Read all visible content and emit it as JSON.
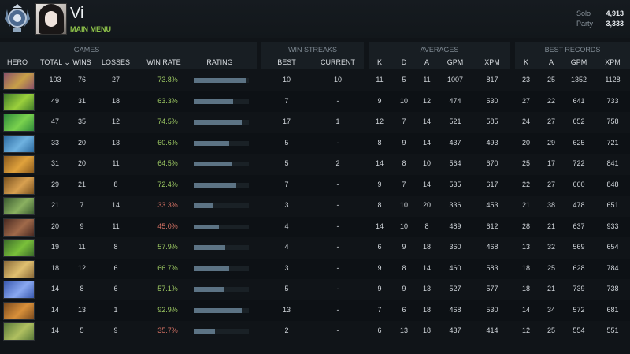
{
  "player": {
    "name": "Vi",
    "menu_label": "MAIN MENU",
    "solo_label": "Solo",
    "solo_value": "4,913",
    "party_label": "Party",
    "party_value": "3,333"
  },
  "groups": {
    "games": "GAMES",
    "win_streaks": "WIN STREAKS",
    "averages": "AVERAGES",
    "best_records": "BEST RECORDS"
  },
  "columns": {
    "hero": "HERO",
    "total": "TOTAL ⌄",
    "wins": "WINS",
    "losses": "LOSSES",
    "win_rate": "WIN RATE",
    "rating": "RATING",
    "best": "BEST",
    "current": "CURRENT",
    "avg_k": "K",
    "avg_d": "D",
    "avg_a": "A",
    "avg_gpm": "GPM",
    "avg_xpm": "XPM",
    "best_k": "K",
    "best_a": "A",
    "best_gpm": "GPM",
    "best_xpm": "XPM"
  },
  "rows": [
    {
      "total": "103",
      "wins": "76",
      "losses": "27",
      "win_rate": "73.8%",
      "rating": 0.96,
      "best": "10",
      "current": "10",
      "k": "11",
      "d": "5",
      "a": "11",
      "gpm": "1007",
      "xpm": "817",
      "bk": "23",
      "ba": "25",
      "bgpm": "1352",
      "bxpm": "1128",
      "c1": "#8a4f6a",
      "c2": "#c8a048"
    },
    {
      "total": "49",
      "wins": "31",
      "losses": "18",
      "win_rate": "63.3%",
      "rating": 0.71,
      "best": "7",
      "current": "-",
      "k": "9",
      "d": "10",
      "a": "12",
      "gpm": "474",
      "xpm": "530",
      "bk": "27",
      "ba": "22",
      "bgpm": "641",
      "bxpm": "733",
      "c1": "#3f7a2a",
      "c2": "#9bd03c"
    },
    {
      "total": "47",
      "wins": "35",
      "losses": "12",
      "win_rate": "74.5%",
      "rating": 0.87,
      "best": "17",
      "current": "1",
      "k": "12",
      "d": "7",
      "a": "14",
      "gpm": "521",
      "xpm": "585",
      "bk": "24",
      "ba": "27",
      "bgpm": "652",
      "bxpm": "758",
      "c1": "#2f8a3a",
      "c2": "#7ad24e"
    },
    {
      "total": "33",
      "wins": "20",
      "losses": "13",
      "win_rate": "60.6%",
      "rating": 0.64,
      "best": "5",
      "current": "-",
      "k": "8",
      "d": "9",
      "a": "14",
      "gpm": "437",
      "xpm": "493",
      "bk": "20",
      "ba": "29",
      "bgpm": "625",
      "bxpm": "721",
      "c1": "#2c6aa0",
      "c2": "#6fb2e0"
    },
    {
      "total": "31",
      "wins": "20",
      "losses": "11",
      "win_rate": "64.5%",
      "rating": 0.69,
      "best": "5",
      "current": "2",
      "k": "14",
      "d": "8",
      "a": "10",
      "gpm": "564",
      "xpm": "670",
      "bk": "25",
      "ba": "17",
      "bgpm": "722",
      "bxpm": "841",
      "c1": "#8a5a1e",
      "c2": "#e0a23c"
    },
    {
      "total": "29",
      "wins": "21",
      "losses": "8",
      "win_rate": "72.4%",
      "rating": 0.77,
      "best": "7",
      "current": "-",
      "k": "9",
      "d": "7",
      "a": "14",
      "gpm": "535",
      "xpm": "617",
      "bk": "22",
      "ba": "27",
      "bgpm": "660",
      "bxpm": "848",
      "c1": "#7a5220",
      "c2": "#d8a050"
    },
    {
      "total": "21",
      "wins": "7",
      "losses": "14",
      "win_rate": "33.3%",
      "rating": 0.34,
      "best": "3",
      "current": "-",
      "k": "8",
      "d": "10",
      "a": "20",
      "gpm": "336",
      "xpm": "453",
      "bk": "21",
      "ba": "38",
      "bgpm": "478",
      "bxpm": "651",
      "c1": "#3a5a30",
      "c2": "#8ab060"
    },
    {
      "total": "20",
      "wins": "9",
      "losses": "11",
      "win_rate": "45.0%",
      "rating": 0.45,
      "best": "4",
      "current": "-",
      "k": "14",
      "d": "10",
      "a": "8",
      "gpm": "489",
      "xpm": "612",
      "bk": "28",
      "ba": "21",
      "bgpm": "637",
      "bxpm": "933",
      "c1": "#4a2a22",
      "c2": "#a06a4a"
    },
    {
      "total": "19",
      "wins": "11",
      "losses": "8",
      "win_rate": "57.9%",
      "rating": 0.57,
      "best": "4",
      "current": "-",
      "k": "6",
      "d": "9",
      "a": "18",
      "gpm": "360",
      "xpm": "468",
      "bk": "13",
      "ba": "32",
      "bgpm": "569",
      "bxpm": "654",
      "c1": "#3a6a2a",
      "c2": "#7ac03a"
    },
    {
      "total": "18",
      "wins": "12",
      "losses": "6",
      "win_rate": "66.7%",
      "rating": 0.64,
      "best": "3",
      "current": "-",
      "k": "9",
      "d": "8",
      "a": "14",
      "gpm": "460",
      "xpm": "583",
      "bk": "18",
      "ba": "25",
      "bgpm": "628",
      "bxpm": "784",
      "c1": "#8a6a3a",
      "c2": "#e0c070"
    },
    {
      "total": "14",
      "wins": "8",
      "losses": "6",
      "win_rate": "57.1%",
      "rating": 0.56,
      "best": "5",
      "current": "-",
      "k": "9",
      "d": "9",
      "a": "13",
      "gpm": "527",
      "xpm": "577",
      "bk": "18",
      "ba": "21",
      "bgpm": "739",
      "bxpm": "738",
      "c1": "#3a5ab0",
      "c2": "#8aa8f0"
    },
    {
      "total": "14",
      "wins": "13",
      "losses": "1",
      "win_rate": "92.9%",
      "rating": 0.87,
      "best": "13",
      "current": "-",
      "k": "7",
      "d": "6",
      "a": "18",
      "gpm": "468",
      "xpm": "530",
      "bk": "14",
      "ba": "34",
      "bgpm": "572",
      "bxpm": "681",
      "c1": "#7a4a1e",
      "c2": "#d8903a"
    },
    {
      "total": "14",
      "wins": "5",
      "losses": "9",
      "win_rate": "35.7%",
      "rating": 0.39,
      "best": "2",
      "current": "-",
      "k": "6",
      "d": "13",
      "a": "18",
      "gpm": "437",
      "xpm": "414",
      "bk": "12",
      "ba": "25",
      "bgpm": "554",
      "bxpm": "551",
      "c1": "#5a7a3a",
      "c2": "#b0c060"
    }
  ]
}
